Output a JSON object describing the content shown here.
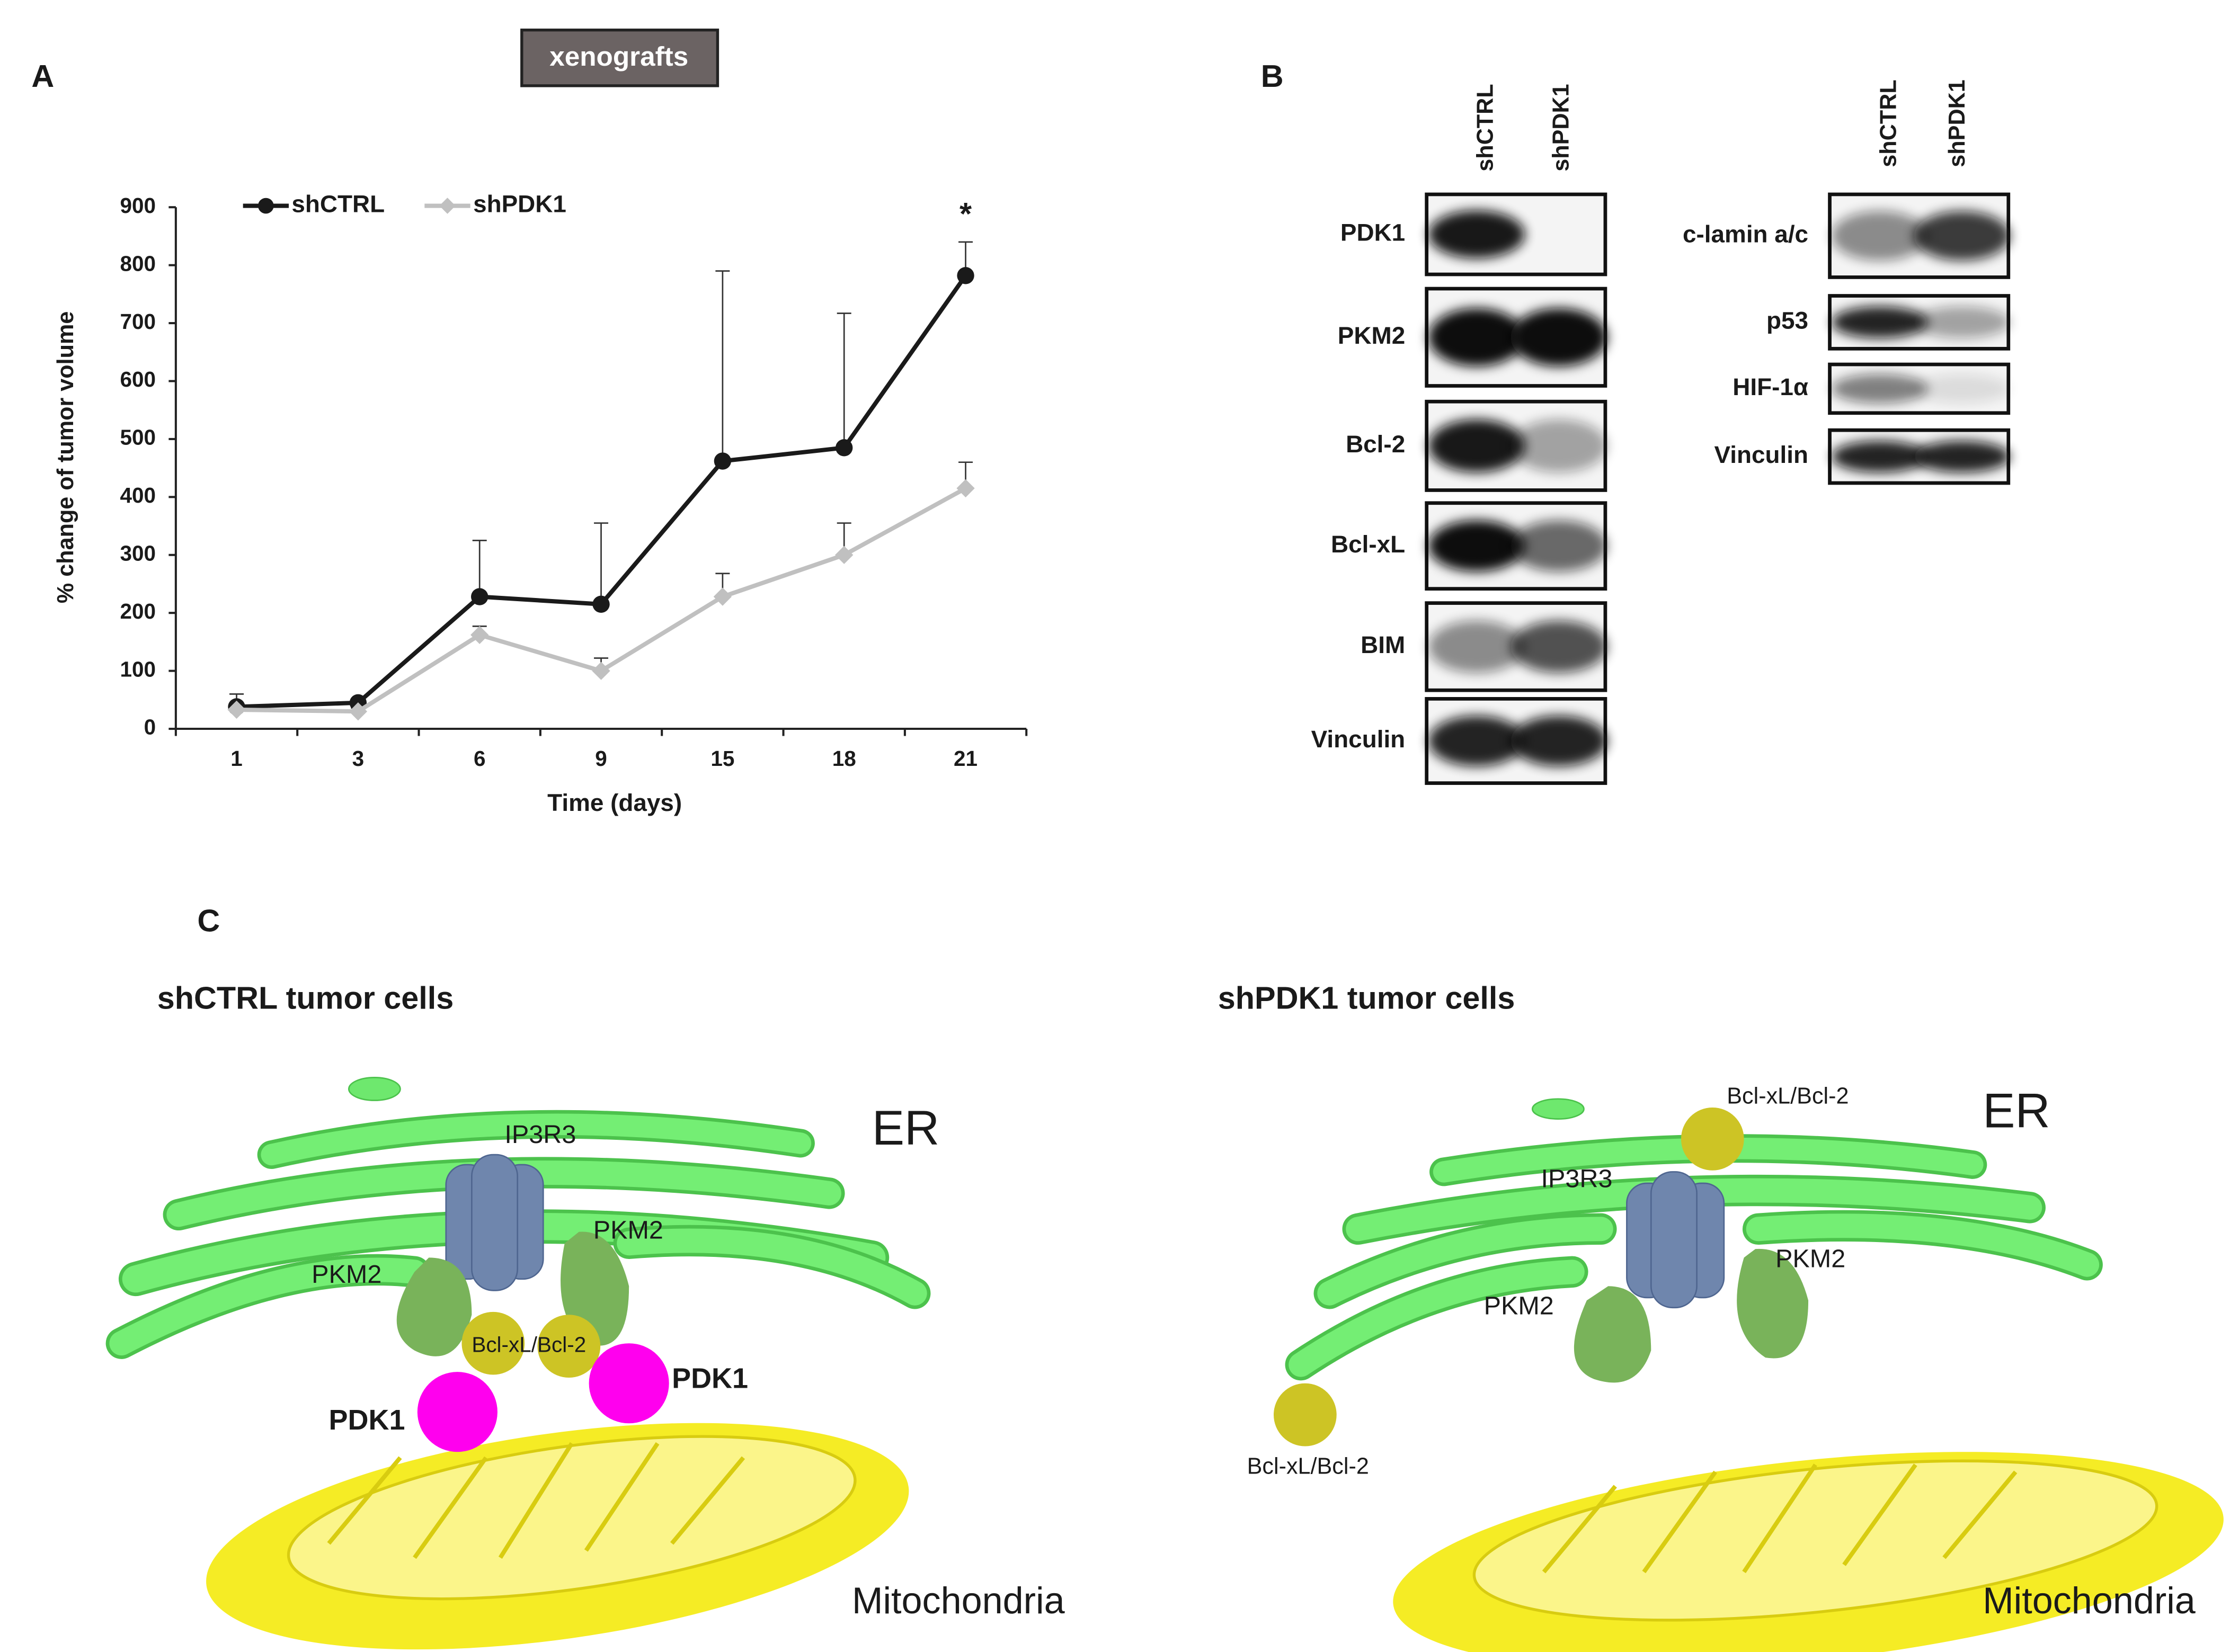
{
  "panel_labels": [
    "A",
    "B",
    "C"
  ],
  "chart_data": {
    "type": "line",
    "title": "xenografts",
    "x_label": "Time (days)",
    "y_label": "% change of tumor volume",
    "categories": [
      "1",
      "3",
      "6",
      "9",
      "15",
      "18",
      "21"
    ],
    "series": [
      {
        "name": "shCTRL",
        "color": "#1a1a1a",
        "values": [
          38,
          45,
          228,
          215,
          462,
          485,
          782
        ],
        "errors": [
          22,
          5,
          97,
          140,
          328,
          232,
          58
        ]
      },
      {
        "name": "shPDK1",
        "color": "#c0c0c0",
        "values": [
          33,
          30,
          162,
          100,
          228,
          300,
          415
        ],
        "errors": [
          8,
          6,
          15,
          22,
          40,
          55,
          45
        ]
      }
    ],
    "ylim": [
      0,
      900
    ],
    "yticks": [
      0,
      100,
      200,
      300,
      400,
      500,
      600,
      700,
      800,
      900
    ],
    "annotations": [
      "*"
    ],
    "legend": "top-left"
  },
  "blots": {
    "left": {
      "lanes": [
        "shCTRL",
        "shPDK1"
      ],
      "proteins": [
        "PDK1",
        "PKM2",
        "Bcl-2",
        "Bcl-xL",
        "BIM",
        "Vinculin"
      ]
    },
    "right": {
      "lanes": [
        "shCTRL",
        "shPDK1"
      ],
      "proteins": [
        "c-lamin a/c",
        "p53",
        "HIF-1α",
        "Vinculin"
      ]
    }
  },
  "diagram": {
    "left": {
      "title": "shCTRL tumor cells",
      "labels": [
        "ER",
        "IP3R3",
        "PKM2",
        "PKM2",
        "Bcl-xL/Bcl-2",
        "PDK1",
        "PDK1",
        "Mitochondria"
      ]
    },
    "right": {
      "title": "shPDK1 tumor cells",
      "labels": [
        "ER",
        "Bcl-xL/Bcl-2",
        "IP3R3",
        "PKM2",
        "PKM2",
        "Bcl-xL/Bcl-2",
        "Mitochondria"
      ]
    }
  }
}
